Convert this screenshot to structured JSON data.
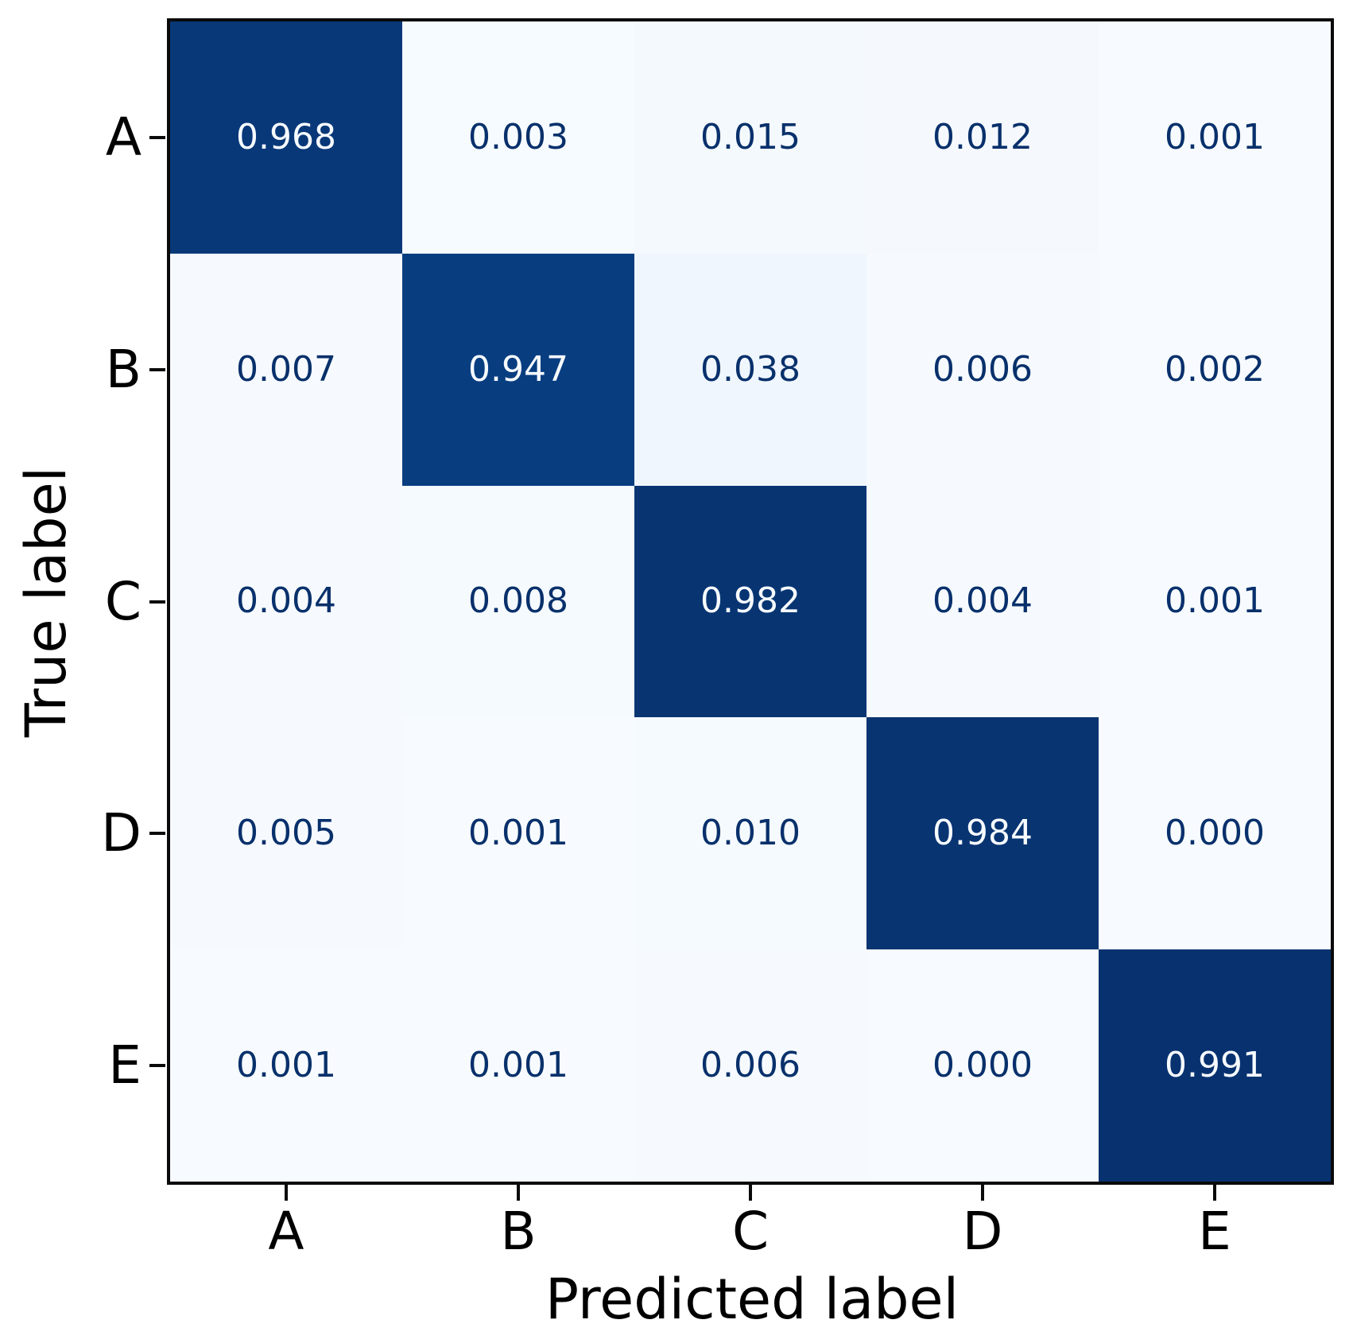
{
  "chart_data": {
    "type": "heatmap",
    "title": "",
    "xlabel": "Predicted label",
    "ylabel": "True label",
    "x_tick_labels": [
      "A",
      "B",
      "C",
      "D",
      "E"
    ],
    "y_tick_labels": [
      "A",
      "B",
      "C",
      "D",
      "E"
    ],
    "values": [
      [
        0.968,
        0.003,
        0.015,
        0.012,
        0.001
      ],
      [
        0.007,
        0.947,
        0.038,
        0.006,
        0.002
      ],
      [
        0.004,
        0.008,
        0.982,
        0.004,
        0.001
      ],
      [
        0.005,
        0.001,
        0.01,
        0.984,
        0.0
      ],
      [
        0.001,
        0.001,
        0.006,
        0.0,
        0.991
      ]
    ],
    "value_decimals": 3,
    "vmin": 0.0,
    "vmax": 1.0,
    "grid": false,
    "legend": "none",
    "background": "#ffffff",
    "frame_color": "#0a0a0a",
    "colormap": {
      "name": "Blues",
      "stops": [
        [
          0.0,
          "#f7fbff"
        ],
        [
          0.125,
          "#deebf7"
        ],
        [
          0.25,
          "#c6dbef"
        ],
        [
          0.375,
          "#9ecae1"
        ],
        [
          0.5,
          "#6baed6"
        ],
        [
          0.625,
          "#4292c6"
        ],
        [
          0.75,
          "#2171b5"
        ],
        [
          0.875,
          "#08519c"
        ],
        [
          1.0,
          "#08306b"
        ]
      ]
    },
    "text_colors": {
      "on_light": "#08306b",
      "on_dark": "#f7fbff",
      "threshold": 0.5
    }
  }
}
